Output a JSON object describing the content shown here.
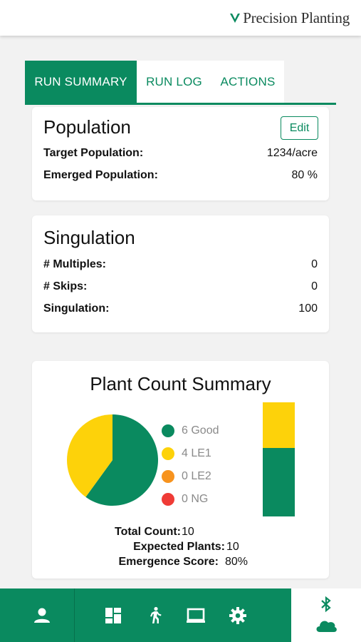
{
  "header": {
    "brand_name": "Precision Planting"
  },
  "tabs": [
    {
      "label": "RUN SUMMARY",
      "active": true
    },
    {
      "label": "RUN LOG",
      "active": false
    },
    {
      "label": "ACTIONS",
      "active": false
    }
  ],
  "population": {
    "title": "Population",
    "edit_label": "Edit",
    "rows": [
      {
        "label": "Target Population:",
        "value": "1234/acre"
      },
      {
        "label": "Emerged Population:",
        "value": "80 %"
      }
    ]
  },
  "singulation": {
    "title": "Singulation",
    "rows": [
      {
        "label": "# Multiples:",
        "value": "0"
      },
      {
        "label": "# Skips:",
        "value": "0"
      },
      {
        "label": "Singulation:",
        "value": "100"
      }
    ]
  },
  "plant_count": {
    "title": "Plant Count Summary",
    "legend": [
      {
        "label": "6 Good",
        "color": "#0a8a5f"
      },
      {
        "label": "4 LE1",
        "color": "#fdd20a"
      },
      {
        "label": "0 LE2",
        "color": "#f7931e"
      },
      {
        "label": "0 NG",
        "color": "#ef3b36"
      }
    ],
    "stats": [
      {
        "label": "Total Count:",
        "value": "10"
      },
      {
        "label": "Expected Plants:",
        "value": "10"
      },
      {
        "label": "Emergence Score:",
        "value": "80%"
      }
    ]
  },
  "chart_data": {
    "type": "pie",
    "title": "Plant Count Summary",
    "categories": [
      "Good",
      "LE1",
      "LE2",
      "NG"
    ],
    "values": [
      6,
      4,
      0,
      0
    ],
    "colors": [
      "#0a8a5f",
      "#fdd20a",
      "#f7931e",
      "#ef3b36"
    ],
    "stacked_bar": {
      "categories": [
        "Good",
        "LE1"
      ],
      "values": [
        6,
        4
      ]
    }
  },
  "bottom_nav": {
    "items": [
      {
        "icon": "user-icon"
      },
      {
        "icon": "dashboard-icon"
      },
      {
        "icon": "walking-person-icon"
      },
      {
        "icon": "monitor-icon"
      },
      {
        "icon": "gear-icon"
      },
      {
        "icon": "bluetooth-icon"
      },
      {
        "icon": "cloud-icon"
      }
    ]
  },
  "colors": {
    "accent": "#0a8a5f",
    "background": "#f2f2f2"
  }
}
